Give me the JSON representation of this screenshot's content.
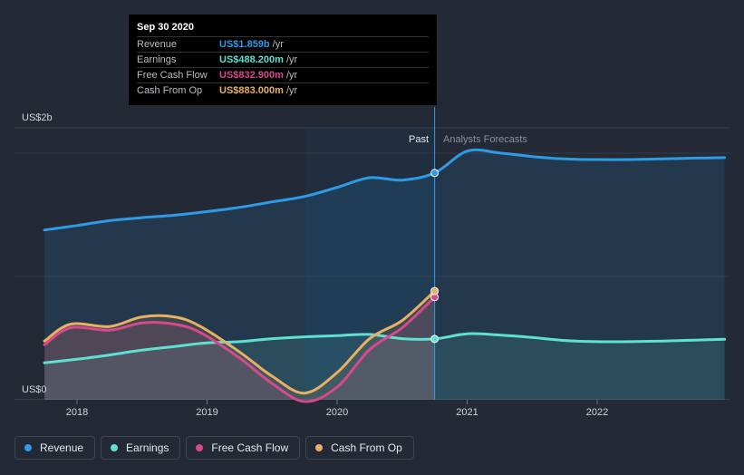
{
  "tooltip": {
    "date": "Sep 30 2020",
    "rows": [
      {
        "label": "Revenue",
        "value": "US$1.859b",
        "unit": "/yr",
        "color": "#2e9be6"
      },
      {
        "label": "Earnings",
        "value": "US$488.200m",
        "unit": "/yr",
        "color": "#5fe0d2"
      },
      {
        "label": "Free Cash Flow",
        "value": "US$832.900m",
        "unit": "/yr",
        "color": "#d64a8c"
      },
      {
        "label": "Cash From Op",
        "value": "US$883.000m",
        "unit": "/yr",
        "color": "#e8b062"
      }
    ]
  },
  "legend": [
    {
      "label": "Revenue",
      "color": "#2e9be6"
    },
    {
      "label": "Earnings",
      "color": "#5fe0d2"
    },
    {
      "label": "Free Cash Flow",
      "color": "#d64a8c"
    },
    {
      "label": "Cash From Op",
      "color": "#e8b062"
    }
  ],
  "chart_data": {
    "type": "line",
    "y_axis_labels": [
      "US$2b",
      "US$0"
    ],
    "ylim": [
      0,
      2000
    ],
    "x_ticks": [
      "2018",
      "2019",
      "2020",
      "2021",
      "2022"
    ],
    "xlim": [
      2017.73,
      2022.98
    ],
    "past_label": "Past",
    "forecast_label": "Analysts Forecasts",
    "divider_x": 2020.75,
    "series": [
      {
        "name": "Revenue",
        "color": "#2e9be6",
        "points": [
          [
            2017.75,
            1388
          ],
          [
            2018.0,
            1425
          ],
          [
            2018.25,
            1465
          ],
          [
            2018.5,
            1490
          ],
          [
            2018.75,
            1510
          ],
          [
            2019.0,
            1540
          ],
          [
            2019.25,
            1575
          ],
          [
            2019.5,
            1620
          ],
          [
            2019.75,
            1665
          ],
          [
            2020.0,
            1740
          ],
          [
            2020.25,
            1820
          ],
          [
            2020.5,
            1800
          ],
          [
            2020.75,
            1859
          ],
          [
            2021.0,
            2040
          ],
          [
            2021.25,
            2025
          ],
          [
            2021.5,
            1995
          ],
          [
            2021.75,
            1975
          ],
          [
            2022.0,
            1970
          ],
          [
            2022.25,
            1970
          ],
          [
            2022.5,
            1975
          ],
          [
            2022.75,
            1982
          ],
          [
            2022.98,
            1986
          ]
        ]
      },
      {
        "name": "Earnings",
        "color": "#5fe0d2",
        "points": [
          [
            2017.75,
            290
          ],
          [
            2018.0,
            320
          ],
          [
            2018.25,
            355
          ],
          [
            2018.5,
            395
          ],
          [
            2018.75,
            425
          ],
          [
            2019.0,
            455
          ],
          [
            2019.25,
            465
          ],
          [
            2019.5,
            490
          ],
          [
            2019.75,
            505
          ],
          [
            2020.0,
            515
          ],
          [
            2020.25,
            525
          ],
          [
            2020.5,
            490
          ],
          [
            2020.75,
            488
          ],
          [
            2021.0,
            530
          ],
          [
            2021.25,
            520
          ],
          [
            2021.5,
            500
          ],
          [
            2021.75,
            475
          ],
          [
            2022.0,
            465
          ],
          [
            2022.25,
            465
          ],
          [
            2022.5,
            470
          ],
          [
            2022.75,
            478
          ],
          [
            2022.98,
            485
          ]
        ]
      },
      {
        "name": "Free Cash Flow",
        "color": "#d64a8c",
        "points": [
          [
            2017.75,
            440
          ],
          [
            2017.95,
            580
          ],
          [
            2018.25,
            560
          ],
          [
            2018.5,
            620
          ],
          [
            2018.75,
            610
          ],
          [
            2018.95,
            540
          ],
          [
            2019.25,
            330
          ],
          [
            2019.5,
            120
          ],
          [
            2019.75,
            -30
          ],
          [
            2020.0,
            90
          ],
          [
            2020.25,
            400
          ],
          [
            2020.5,
            580
          ],
          [
            2020.75,
            833
          ]
        ]
      },
      {
        "name": "Cash From Op",
        "color": "#e8b062",
        "points": [
          [
            2017.75,
            470
          ],
          [
            2017.95,
            610
          ],
          [
            2018.25,
            590
          ],
          [
            2018.5,
            670
          ],
          [
            2018.75,
            670
          ],
          [
            2018.95,
            590
          ],
          [
            2019.25,
            380
          ],
          [
            2019.5,
            180
          ],
          [
            2019.75,
            40
          ],
          [
            2020.0,
            210
          ],
          [
            2020.25,
            490
          ],
          [
            2020.5,
            640
          ],
          [
            2020.75,
            883
          ]
        ]
      }
    ]
  }
}
